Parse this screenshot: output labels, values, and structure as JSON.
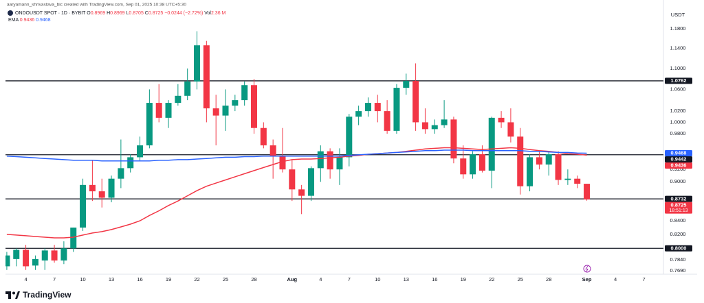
{
  "header": {
    "credit": "aaryamann_shrivastava_bic created with TradingView.com, Sep 01, 2025 10:38 UTC+5:30",
    "symbol": "ONDOUSDT SPOT · 1D · BYBIT",
    "ohlc_letters": [
      "O",
      "H",
      "L",
      "C"
    ],
    "change": "−0.0244 (−2.72%)",
    "volume_label": "Vol",
    "volume": "2.36 M",
    "currency": "USDT",
    "countdown": "18:51:13"
  },
  "footer": {
    "brand": "TradingView"
  },
  "chart_data": {
    "type": "candlestick",
    "categories": [
      null,
      null,
      "4",
      null,
      null,
      "7",
      null,
      null,
      "10",
      null,
      null,
      "13",
      null,
      null,
      "16",
      null,
      null,
      "19",
      null,
      null,
      "22",
      null,
      null,
      "25",
      null,
      null,
      "28",
      null,
      null,
      null,
      "Aug",
      null,
      null,
      "4",
      null,
      null,
      "7",
      null,
      null,
      "10",
      null,
      null,
      "13",
      null,
      null,
      "16",
      null,
      null,
      "19",
      null,
      null,
      "22",
      null,
      null,
      "25",
      null,
      null,
      "28",
      null,
      null,
      null,
      "Sep",
      null,
      null,
      "4",
      null,
      null,
      "7"
    ],
    "open": [
      0.775,
      0.785,
      0.798,
      0.776,
      0.783,
      0.797,
      0.783,
      0.8,
      0.83,
      0.895,
      0.885,
      0.875,
      0.905,
      0.922,
      0.94,
      0.96,
      1.035,
      1.008,
      1.035,
      1.048,
      1.075,
      1.146,
      1.025,
      1.012,
      1.03,
      1.04,
      1.068,
      0.99,
      0.96,
      0.942,
      0.92,
      0.888,
      0.878,
      0.922,
      0.95,
      0.92,
      0.94,
      1.01,
      1.02,
      1.035,
      1.02,
      0.985,
      1.063,
      1.076,
      1.0,
      0.988,
      0.995,
      1.005,
      0.938,
      0.912,
      0.945,
      0.918,
      1.008,
      1.0,
      0.975,
      0.893,
      0.94,
      0.928,
      0.945,
      0.903,
      0.905,
      0.8969,
      null,
      null,
      null,
      null,
      null,
      null
    ],
    "high": [
      0.795,
      0.8,
      0.805,
      0.79,
      0.8,
      0.805,
      0.81,
      0.83,
      0.905,
      0.935,
      0.905,
      0.91,
      0.97,
      0.945,
      0.975,
      1.06,
      1.07,
      1.04,
      1.07,
      1.1,
      1.175,
      1.155,
      1.05,
      1.06,
      1.05,
      1.075,
      1.08,
      1.0,
      0.97,
      0.99,
      0.935,
      0.895,
      0.925,
      0.96,
      0.955,
      0.955,
      1.015,
      1.03,
      1.045,
      1.05,
      1.04,
      1.07,
      1.09,
      1.11,
      1.025,
      1.005,
      1.04,
      1.01,
      0.96,
      0.95,
      0.96,
      1.01,
      1.02,
      1.025,
      0.99,
      0.945,
      0.95,
      0.95,
      0.95,
      0.92,
      0.91,
      0.8969,
      null,
      null,
      null,
      null,
      null,
      null
    ],
    "low": [
      0.77,
      0.775,
      0.77,
      0.77,
      0.77,
      0.78,
      0.778,
      0.795,
      0.825,
      0.87,
      0.86,
      0.868,
      0.89,
      0.915,
      0.935,
      0.955,
      1.0,
      0.99,
      1.03,
      1.04,
      1.06,
      1.0,
      0.96,
      0.985,
      1.02,
      1.03,
      0.98,
      0.955,
      0.905,
      0.915,
      0.87,
      0.85,
      0.87,
      0.9,
      0.905,
      0.895,
      0.925,
      0.995,
      1.01,
      1.0,
      0.98,
      0.98,
      1.05,
      0.985,
      0.98,
      0.98,
      0.99,
      0.93,
      0.905,
      0.905,
      0.915,
      0.89,
      0.99,
      0.965,
      0.88,
      0.885,
      0.92,
      0.91,
      0.895,
      0.895,
      0.89,
      0.8705,
      null,
      null,
      null,
      null,
      null,
      null
    ],
    "close": [
      0.79,
      0.798,
      0.775,
      0.785,
      0.797,
      0.783,
      0.8,
      0.83,
      0.895,
      0.885,
      0.875,
      0.905,
      0.922,
      0.94,
      0.96,
      1.035,
      1.008,
      1.035,
      1.048,
      1.075,
      1.146,
      1.025,
      1.012,
      1.03,
      1.04,
      1.068,
      0.99,
      0.96,
      0.942,
      0.92,
      0.888,
      0.878,
      0.922,
      0.95,
      0.92,
      0.94,
      1.01,
      1.02,
      1.035,
      1.02,
      0.985,
      1.063,
      1.076,
      1.0,
      0.988,
      0.995,
      1.005,
      0.938,
      0.912,
      0.945,
      0.918,
      1.008,
      1.0,
      0.975,
      0.893,
      0.94,
      0.928,
      0.945,
      0.903,
      0.905,
      0.897,
      0.8725,
      null,
      null,
      null,
      null,
      null,
      null
    ],
    "up_color": "#089981",
    "down_color": "#f23645",
    "series": [
      {
        "name": "EMA",
        "color": "#f23645",
        "values": [
          0.82,
          0.819,
          0.818,
          0.817,
          0.816,
          0.815,
          0.815,
          0.816,
          0.819,
          0.822,
          0.824,
          0.827,
          0.831,
          0.835,
          0.84,
          0.848,
          0.855,
          0.863,
          0.87,
          0.878,
          0.886,
          0.893,
          0.898,
          0.903,
          0.908,
          0.913,
          0.918,
          0.923,
          0.928,
          0.933,
          0.936,
          0.937,
          0.937,
          0.938,
          0.939,
          0.94,
          0.942,
          0.943,
          0.945,
          0.946,
          0.947,
          0.948,
          0.95,
          0.952,
          0.954,
          0.955,
          0.956,
          0.956,
          0.955,
          0.954,
          0.953,
          0.954,
          0.955,
          0.956,
          0.955,
          0.953,
          0.951,
          0.95,
          0.948,
          0.946,
          0.945,
          0.9436,
          null,
          null,
          null,
          null,
          null,
          null
        ]
      },
      {
        "color": "#2962ff",
        "values": [
          0.942,
          0.941,
          0.94,
          0.939,
          0.938,
          0.937,
          0.936,
          0.935,
          0.935,
          0.935,
          0.934,
          0.934,
          0.934,
          0.934,
          0.934,
          0.934,
          0.935,
          0.935,
          0.936,
          0.936,
          0.937,
          0.938,
          0.939,
          0.94,
          0.94,
          0.941,
          0.941,
          0.942,
          0.942,
          0.942,
          0.942,
          0.942,
          0.942,
          0.942,
          0.942,
          0.942,
          0.943,
          0.944,
          0.945,
          0.946,
          0.947,
          0.948,
          0.949,
          0.95,
          0.951,
          0.951,
          0.952,
          0.952,
          0.952,
          0.951,
          0.951,
          0.951,
          0.951,
          0.951,
          0.951,
          0.95,
          0.95,
          0.949,
          0.948,
          0.948,
          0.947,
          0.9468,
          null,
          null,
          null,
          null,
          null,
          null
        ]
      }
    ],
    "hlines": [
      {
        "value": 1.0762,
        "label": "1.0762"
      },
      {
        "value": 0.9442,
        "label": "0.9442"
      },
      {
        "value": 0.8732,
        "label": "0.8732"
      },
      {
        "value": 0.8,
        "label": "0.8000"
      }
    ],
    "hline_color": "#131722",
    "log_scale": true,
    "grid": false,
    "ylim": [
      0.7642,
      1.2268
    ],
    "yticks": [
      {
        "value": 1.18,
        "label": "1.1800"
      },
      {
        "value": 1.14,
        "label": "1.1400"
      },
      {
        "value": 1.1,
        "label": "1.1000"
      },
      {
        "value": 1.06,
        "label": "1.0600"
      },
      {
        "value": 1.02,
        "label": "1.0200"
      },
      {
        "value": 1.0,
        "label": "1.0000"
      },
      {
        "value": 0.98,
        "label": "0.9800"
      },
      {
        "value": 0.92,
        "label": "0.9200"
      },
      {
        "value": 0.9,
        "label": "0.9000"
      },
      {
        "value": 0.84,
        "label": "0.8400"
      },
      {
        "value": 0.82,
        "label": "0.8200"
      },
      {
        "value": 0.784,
        "label": "0.7840"
      },
      {
        "value": 0.769,
        "label": "0.7690"
      }
    ]
  }
}
